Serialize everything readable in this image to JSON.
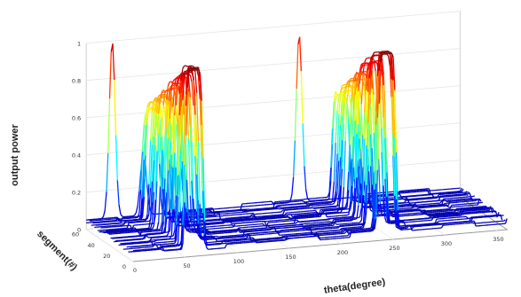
{
  "chart_data": {
    "type": "line",
    "subtype": "3d-waterfall",
    "title": "",
    "xlabel": "theta(degree)",
    "ylabel": "segment(#)",
    "zlabel": "output power",
    "x_ticks": [
      "0",
      "50",
      "100",
      "150",
      "200",
      "250",
      "300",
      "350"
    ],
    "y_ticks": [
      "0",
      "20",
      "40",
      "60"
    ],
    "z_ticks": [
      "0",
      "0.2",
      "0.4",
      "0.6",
      "0.8",
      "1"
    ],
    "xlim": [
      0,
      360
    ],
    "ylim": [
      0,
      60
    ],
    "zlim": [
      0,
      1
    ],
    "colormap": "jet",
    "grid": true,
    "series_count": 30,
    "peaks_theta_deg": [
      62,
      245
    ],
    "peak_max_power": 1.0,
    "background_power": 0.05,
    "back_curve_features": [
      {
        "theta_deg": 25,
        "power": 1.0
      },
      {
        "theta_deg": 55,
        "power": 0.4
      },
      {
        "theta_deg": 88,
        "power": 0.55
      },
      {
        "theta_deg": 205,
        "power": 0.95
      }
    ]
  }
}
